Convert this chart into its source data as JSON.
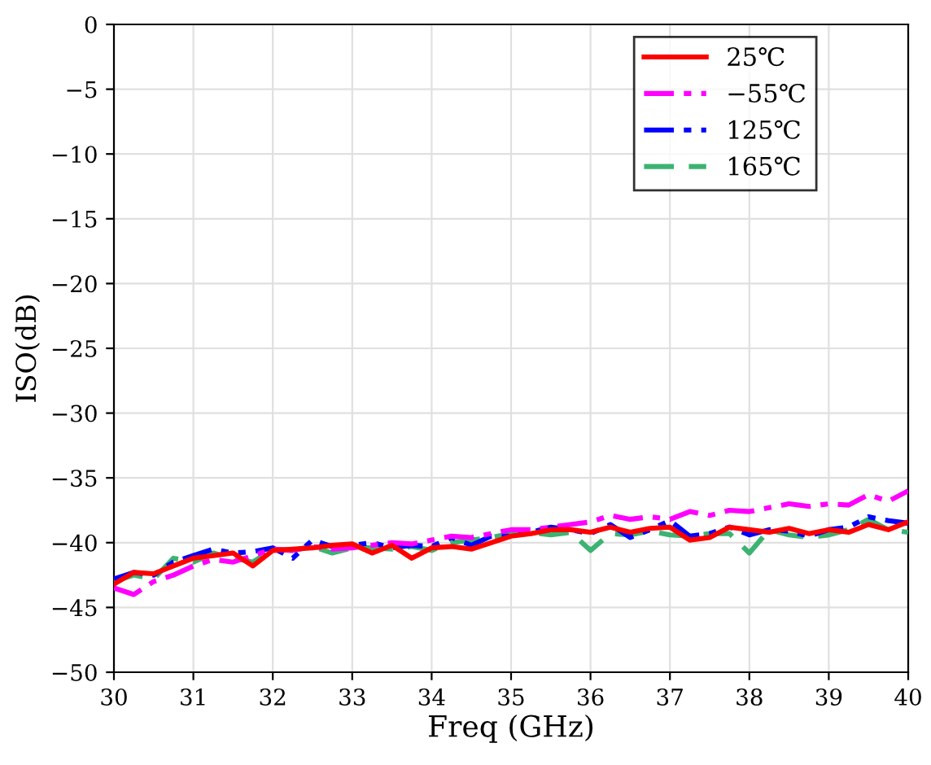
{
  "chart_data": {
    "type": "line",
    "xlabel": "Freq (GHz)",
    "ylabel": "ISO(dB)",
    "xlim": [
      30,
      40
    ],
    "ylim": [
      -50,
      0
    ],
    "xticks": [
      30,
      31,
      32,
      33,
      34,
      35,
      36,
      37,
      38,
      39,
      40
    ],
    "yticks": [
      -50,
      -45,
      -40,
      -35,
      -30,
      -25,
      -20,
      -15,
      -10,
      -5,
      0
    ],
    "grid": true,
    "legend": "top right",
    "series": [
      {
        "name": "25℃",
        "color": "#ff0000",
        "line_style": "solid",
        "x": [
          30,
          30.25,
          30.5,
          30.75,
          31,
          31.25,
          31.5,
          31.75,
          32,
          32.25,
          32.5,
          32.75,
          33,
          33.25,
          33.5,
          33.75,
          34,
          34.25,
          34.5,
          34.75,
          35,
          35.25,
          35.5,
          35.75,
          36,
          36.25,
          36.5,
          36.75,
          37,
          37.25,
          37.5,
          37.75,
          38,
          38.25,
          38.5,
          38.75,
          39,
          39.25,
          39.5,
          39.75,
          40
        ],
        "values": [
          -43.2,
          -42.3,
          -42.4,
          -41.8,
          -41.2,
          -41,
          -40.8,
          -41.8,
          -40.6,
          -40.5,
          -40.4,
          -40.2,
          -40.1,
          -40.8,
          -40.2,
          -41.2,
          -40.4,
          -40.3,
          -40.5,
          -40,
          -39.5,
          -39.3,
          -39,
          -39,
          -39.2,
          -38.8,
          -39.2,
          -38.9,
          -38.8,
          -39.8,
          -39.6,
          -38.8,
          -39,
          -39.2,
          -38.9,
          -39.3,
          -39,
          -39.2,
          -38.6,
          -39,
          -38.4
        ]
      },
      {
        "name": "−55℃",
        "color": "#ff00ff",
        "line_style": "dashdot",
        "x": [
          30,
          30.25,
          30.5,
          30.75,
          31,
          31.25,
          31.5,
          31.75,
          32,
          32.25,
          32.5,
          32.75,
          33,
          33.25,
          33.5,
          33.75,
          34,
          34.25,
          34.5,
          34.75,
          35,
          35.25,
          35.5,
          35.75,
          36,
          36.25,
          36.5,
          36.75,
          37,
          37.25,
          37.5,
          37.75,
          38,
          38.25,
          38.5,
          38.75,
          39,
          39.25,
          39.5,
          39.75,
          40
        ],
        "values": [
          -43.5,
          -44,
          -43,
          -42.5,
          -41.8,
          -41.3,
          -41.5,
          -41,
          -40.5,
          -40.6,
          -40.3,
          -40.5,
          -40.4,
          -40.2,
          -40,
          -40.1,
          -39.8,
          -39.5,
          -39.6,
          -39.3,
          -39,
          -39,
          -38.8,
          -38.6,
          -38.4,
          -37.9,
          -38.2,
          -38,
          -38.2,
          -37.6,
          -37.9,
          -37.5,
          -37.6,
          -37.3,
          -37,
          -37.2,
          -37,
          -37.1,
          -36.3,
          -36.8,
          -36
        ]
      },
      {
        "name": "125℃",
        "color": "#0000ff",
        "line_style": "dashdotdot",
        "x": [
          30,
          30.25,
          30.5,
          30.75,
          31,
          31.25,
          31.5,
          31.75,
          32,
          32.25,
          32.5,
          32.75,
          33,
          33.25,
          33.5,
          33.75,
          34,
          34.25,
          34.5,
          34.75,
          35,
          35.25,
          35.5,
          35.75,
          36,
          36.25,
          36.5,
          36.75,
          37,
          37.25,
          37.5,
          37.75,
          38,
          38.25,
          38.5,
          38.75,
          39,
          39.25,
          39.5,
          39.75,
          40
        ],
        "values": [
          -42.8,
          -42.3,
          -42.5,
          -41.5,
          -41,
          -40.5,
          -40.8,
          -40.7,
          -40.4,
          -41.2,
          -39.8,
          -40.3,
          -40.2,
          -40,
          -40.4,
          -40.2,
          -40.3,
          -39.6,
          -40.2,
          -39.5,
          -39.5,
          -39.2,
          -38.8,
          -39,
          -39.3,
          -38.6,
          -39.6,
          -39,
          -38.3,
          -39.5,
          -39.3,
          -38.8,
          -39.4,
          -39,
          -39.1,
          -39.5,
          -39,
          -38.8,
          -38,
          -38.3,
          -38.5
        ]
      },
      {
        "name": "165℃",
        "color": "#3cb371",
        "line_style": "dashed",
        "x": [
          30,
          30.25,
          30.5,
          30.75,
          31,
          31.25,
          31.5,
          31.75,
          32,
          32.25,
          32.5,
          32.75,
          33,
          33.25,
          33.5,
          33.75,
          34,
          34.25,
          34.5,
          34.75,
          35,
          35.25,
          35.5,
          35.75,
          36,
          36.25,
          36.5,
          36.75,
          37,
          37.25,
          37.5,
          37.75,
          38,
          38.25,
          38.5,
          38.75,
          39,
          39.25,
          39.5,
          39.75,
          40
        ],
        "values": [
          -43,
          -42.5,
          -42.8,
          -41.2,
          -41.5,
          -40.8,
          -41.2,
          -41.5,
          -40.5,
          -40.6,
          -40.3,
          -40.8,
          -40.4,
          -40.4,
          -40.5,
          -40.3,
          -40.6,
          -40,
          -39.8,
          -39.6,
          -39.3,
          -39.2,
          -39.4,
          -39.2,
          -40.6,
          -39.3,
          -39.4,
          -39.1,
          -39.4,
          -39.5,
          -39.3,
          -39.3,
          -40.8,
          -39,
          -39.4,
          -39.6,
          -39.4,
          -39,
          -38.2,
          -39,
          -39.2
        ]
      }
    ]
  }
}
